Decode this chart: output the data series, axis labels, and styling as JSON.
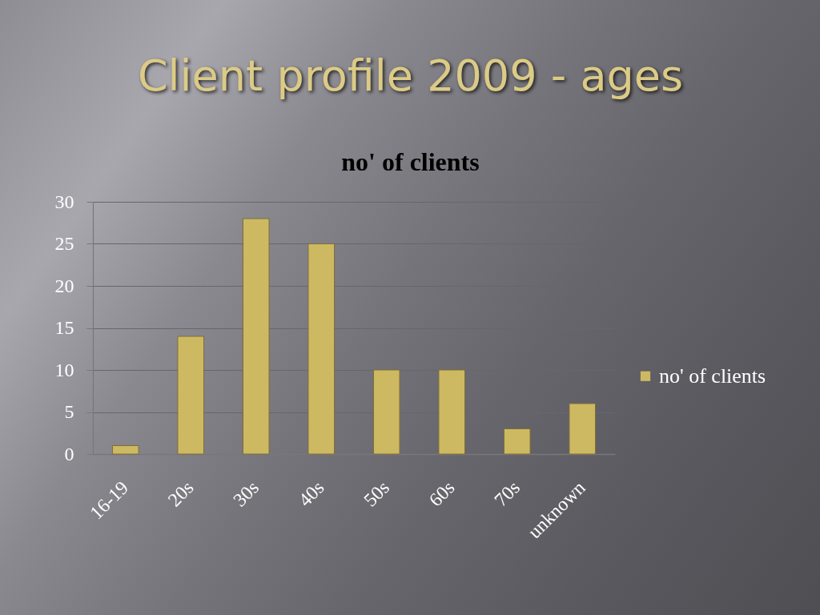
{
  "chart_data": {
    "type": "bar",
    "title": "Client profile 2009 - ages",
    "subtitle": "no' of clients",
    "categories": [
      "16-19",
      "20s",
      "30s",
      "40s",
      "50s",
      "60s",
      "70s",
      "unknown"
    ],
    "series": [
      {
        "name": "no' of clients",
        "color": "#cdb962",
        "values": [
          1,
          14,
          28,
          25,
          10,
          10,
          3,
          6
        ]
      }
    ],
    "ylim": [
      0,
      30
    ],
    "yticks": [
      0,
      5,
      10,
      15,
      20,
      25,
      30
    ],
    "grid": "y",
    "legend": "right"
  }
}
